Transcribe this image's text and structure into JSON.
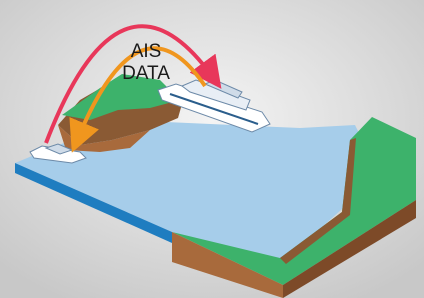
{
  "label": {
    "line1": "AIS",
    "line2": "DATA"
  }
}
